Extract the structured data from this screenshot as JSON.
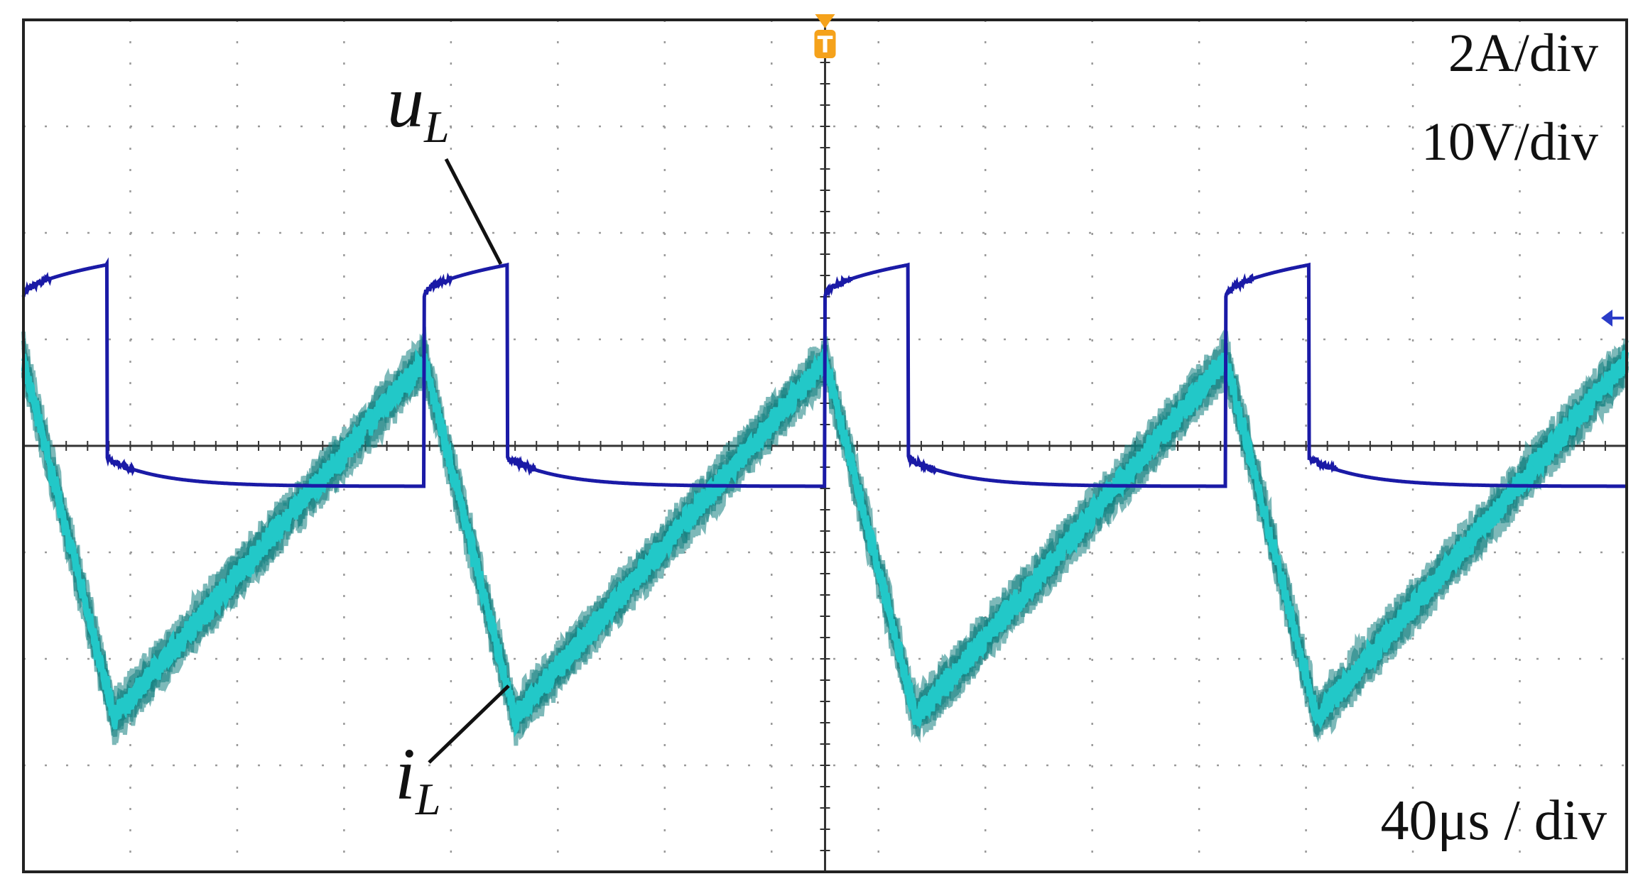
{
  "chart_data": {
    "type": "line",
    "title": "",
    "xlabel": "",
    "ylabel": "",
    "x_unit": "div",
    "y_unit": "div",
    "xlim": [
      0,
      15
    ],
    "ylim": [
      -4,
      4
    ],
    "grid": true,
    "scale_labels": {
      "current": "2A/div",
      "voltage": "10V/div",
      "time": "40μs / div"
    },
    "trigger_marker": "T",
    "period_div": 3.75,
    "series": [
      {
        "name": "u_L",
        "label_main": "u",
        "label_sub": "L",
        "color": "#1a1aa6",
        "x_rise": [
          3.75,
          7.5,
          11.25
        ],
        "high_start": 1.4,
        "high_end": 1.7,
        "fall_offset": 0.78,
        "low_start": -0.12,
        "low_end": -0.38,
        "low_decay_tau": 0.5,
        "trace_start_x": 0.0,
        "trace_start_y": 1.4,
        "trace_end_x": 15.0
      },
      {
        "name": "i_L",
        "label_main": "i",
        "label_sub": "L",
        "color": "#22c8c8",
        "envelope_color": "#138080",
        "peak": 0.8,
        "valley": -2.55,
        "fall_time": 0.85,
        "noise_div": 0.1
      }
    ],
    "reference_marker_y": 1.2
  }
}
